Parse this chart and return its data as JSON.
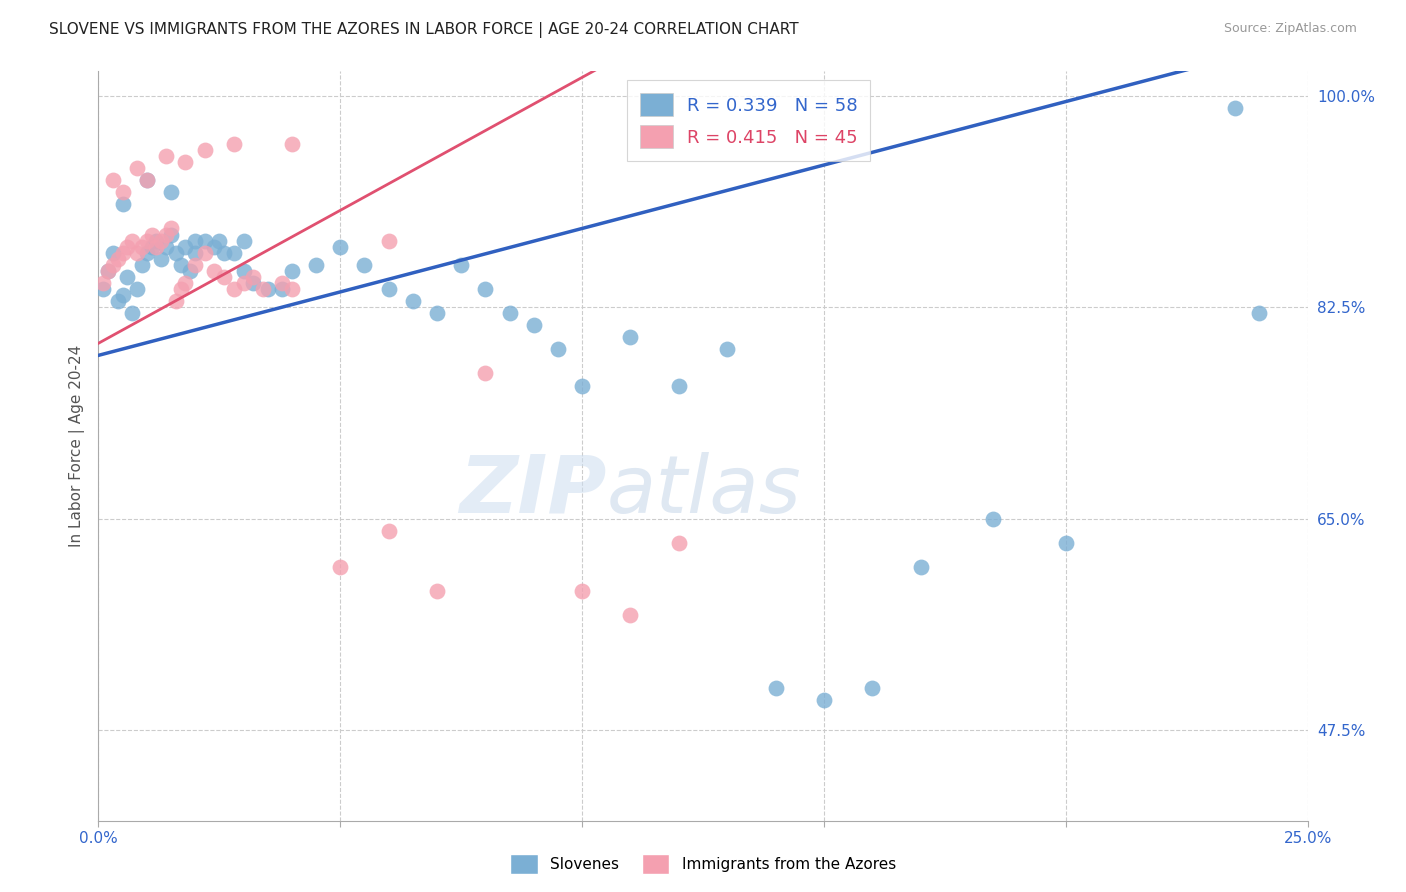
{
  "title": "SLOVENE VS IMMIGRANTS FROM THE AZORES IN LABOR FORCE | AGE 20-24 CORRELATION CHART",
  "source": "Source: ZipAtlas.com",
  "ylabel": "In Labor Force | Age 20-24",
  "x_min": 0.0,
  "x_max": 0.25,
  "y_min": 0.4,
  "y_max": 1.02,
  "grid_color": "#cccccc",
  "background_color": "#ffffff",
  "blue_color": "#7bafd4",
  "pink_color": "#f4a0b0",
  "blue_line_color": "#3060c0",
  "pink_line_color": "#e05070",
  "legend_R_blue": "0.339",
  "legend_N_blue": "58",
  "legend_R_pink": "0.415",
  "legend_N_pink": "45",
  "slovene_label": "Slovenes",
  "azores_label": "Immigrants from the Azores",
  "watermark": "ZIPatlas",
  "blue_slope": 1.05,
  "blue_intercept": 0.785,
  "pink_slope": 2.2,
  "pink_intercept": 0.795,
  "blue_x": [
    0.001,
    0.002,
    0.003,
    0.004,
    0.005,
    0.006,
    0.007,
    0.008,
    0.009,
    0.01,
    0.011,
    0.012,
    0.013,
    0.014,
    0.015,
    0.016,
    0.017,
    0.018,
    0.019,
    0.02,
    0.022,
    0.024,
    0.026,
    0.028,
    0.03,
    0.032,
    0.035,
    0.038,
    0.04,
    0.045,
    0.05,
    0.055,
    0.06,
    0.065,
    0.07,
    0.075,
    0.08,
    0.085,
    0.09,
    0.095,
    0.1,
    0.11,
    0.12,
    0.13,
    0.14,
    0.15,
    0.16,
    0.17,
    0.185,
    0.2,
    0.005,
    0.01,
    0.015,
    0.02,
    0.025,
    0.03,
    0.235,
    0.24
  ],
  "blue_y": [
    0.84,
    0.855,
    0.87,
    0.83,
    0.835,
    0.85,
    0.82,
    0.84,
    0.86,
    0.87,
    0.875,
    0.88,
    0.865,
    0.875,
    0.885,
    0.87,
    0.86,
    0.875,
    0.855,
    0.87,
    0.88,
    0.875,
    0.87,
    0.87,
    0.855,
    0.845,
    0.84,
    0.84,
    0.855,
    0.86,
    0.875,
    0.86,
    0.84,
    0.83,
    0.82,
    0.86,
    0.84,
    0.82,
    0.81,
    0.79,
    0.76,
    0.8,
    0.76,
    0.79,
    0.51,
    0.5,
    0.51,
    0.61,
    0.65,
    0.63,
    0.91,
    0.93,
    0.92,
    0.88,
    0.88,
    0.88,
    0.99,
    0.82
  ],
  "pink_x": [
    0.001,
    0.002,
    0.003,
    0.004,
    0.005,
    0.006,
    0.007,
    0.008,
    0.009,
    0.01,
    0.011,
    0.012,
    0.013,
    0.014,
    0.015,
    0.016,
    0.017,
    0.018,
    0.02,
    0.022,
    0.024,
    0.026,
    0.028,
    0.03,
    0.032,
    0.034,
    0.038,
    0.04,
    0.05,
    0.06,
    0.07,
    0.08,
    0.1,
    0.11,
    0.12,
    0.003,
    0.005,
    0.008,
    0.01,
    0.014,
    0.018,
    0.022,
    0.028,
    0.04,
    0.06
  ],
  "pink_y": [
    0.845,
    0.855,
    0.86,
    0.865,
    0.87,
    0.875,
    0.88,
    0.87,
    0.875,
    0.88,
    0.885,
    0.875,
    0.88,
    0.885,
    0.89,
    0.83,
    0.84,
    0.845,
    0.86,
    0.87,
    0.855,
    0.85,
    0.84,
    0.845,
    0.85,
    0.84,
    0.845,
    0.84,
    0.61,
    0.64,
    0.59,
    0.77,
    0.59,
    0.57,
    0.63,
    0.93,
    0.92,
    0.94,
    0.93,
    0.95,
    0.945,
    0.955,
    0.96,
    0.96,
    0.88
  ]
}
